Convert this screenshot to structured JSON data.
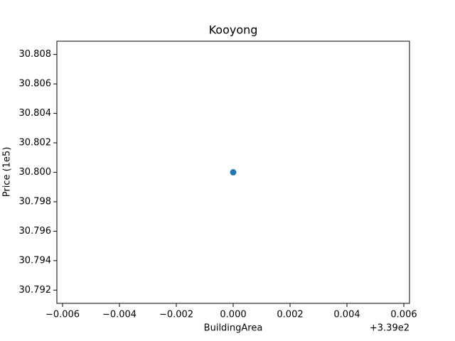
{
  "chart_data": {
    "type": "scatter",
    "title": "Kooyong",
    "x_label": "BuildingArea",
    "y_label": "Price (1e5)",
    "x_offset_label": "+3.39e2",
    "series": [
      {
        "color": "#1f77b4",
        "x": [
          339
        ],
        "values": [
          30.8
        ]
      }
    ],
    "xlim": [
      338.9938,
      339.0062
    ],
    "xticks": [
      {
        "value": 338.994,
        "label": "−0.006"
      },
      {
        "value": 338.996,
        "label": "−0.004"
      },
      {
        "value": 338.998,
        "label": "−0.002"
      },
      {
        "value": 339,
        "label": "0.000"
      },
      {
        "value": 339.002,
        "label": "0.002"
      },
      {
        "value": 339.004,
        "label": "0.004"
      },
      {
        "value": 339.006,
        "label": "0.006"
      }
    ],
    "ylim": [
      30.7911,
      30.8089
    ],
    "yticks": [
      30.792,
      30.794,
      30.796,
      30.798,
      {
        "value": 30.8,
        "label": "30.800"
      },
      30.802,
      30.804,
      30.806,
      30.808
    ],
    "grid": false
  }
}
